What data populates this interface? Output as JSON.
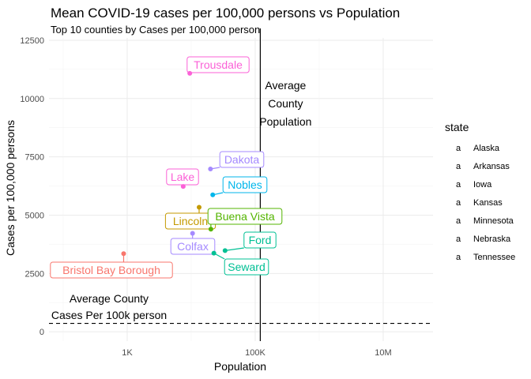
{
  "chart_data": {
    "type": "scatter",
    "title": "Mean COVID-19 cases per 100,000 persons vs Population",
    "subtitle": "Top 10 counties by Cases per 100,000 person",
    "xlabel": "Population",
    "ylabel": "Cases per 100,000 persons",
    "xscale": "log10",
    "xlim": [
      60,
      60000000
    ],
    "ylim": [
      -400,
      12600
    ],
    "x_ticks": [
      {
        "value": 1000,
        "label": "1K"
      },
      {
        "value": 100000,
        "label": "100K"
      },
      {
        "value": 10000000,
        "label": "10M"
      }
    ],
    "y_ticks": [
      {
        "value": 0,
        "label": "0"
      },
      {
        "value": 2500,
        "label": "2500"
      },
      {
        "value": 5000,
        "label": "5000"
      },
      {
        "value": 7500,
        "label": "7500"
      },
      {
        "value": 10000,
        "label": "10000"
      },
      {
        "value": 12500,
        "label": "12500"
      }
    ],
    "grid": true,
    "legend": {
      "title": "state",
      "position": "right",
      "entries": [
        {
          "name": "Alaska",
          "color": "#F8766D"
        },
        {
          "name": "Arkansas",
          "color": "#C49A00"
        },
        {
          "name": "Iowa",
          "color": "#53B400"
        },
        {
          "name": "Kansas",
          "color": "#00C094"
        },
        {
          "name": "Minnesota",
          "color": "#00B6EB"
        },
        {
          "name": "Nebraska",
          "color": "#A58AFF"
        },
        {
          "name": "Tennessee",
          "color": "#FB61D7"
        }
      ]
    },
    "points": [
      {
        "label": "Trousdale",
        "state": "Tennessee",
        "x": 9500,
        "y": 11080
      },
      {
        "label": "Dakota",
        "state": "Nebraska",
        "x": 20000,
        "y": 6980
      },
      {
        "label": "Lake",
        "state": "Tennessee",
        "x": 7500,
        "y": 6230
      },
      {
        "label": "Nobles",
        "state": "Minnesota",
        "x": 21700,
        "y": 5870
      },
      {
        "label": "Lincoln",
        "state": "Arkansas",
        "x": 13300,
        "y": 5340
      },
      {
        "label": "Buena Vista",
        "state": "Iowa",
        "x": 20300,
        "y": 4400
      },
      {
        "label": "Colfax",
        "state": "Nebraska",
        "x": 10500,
        "y": 4220
      },
      {
        "label": "Ford",
        "state": "Kansas",
        "x": 33800,
        "y": 3480
      },
      {
        "label": "Seward",
        "state": "Kansas",
        "x": 22600,
        "y": 3370
      },
      {
        "label": "Bristol Bay Borough",
        "state": "Alaska",
        "x": 880,
        "y": 3350
      }
    ],
    "reference_lines": [
      {
        "orientation": "vertical",
        "value": 120000,
        "style": "solid",
        "label_lines": [
          "Average",
          "County",
          "Population"
        ]
      },
      {
        "orientation": "horizontal",
        "value": 360,
        "style": "dashed",
        "label_lines": [
          "Average County",
          "Cases Per 100k person"
        ]
      }
    ]
  }
}
